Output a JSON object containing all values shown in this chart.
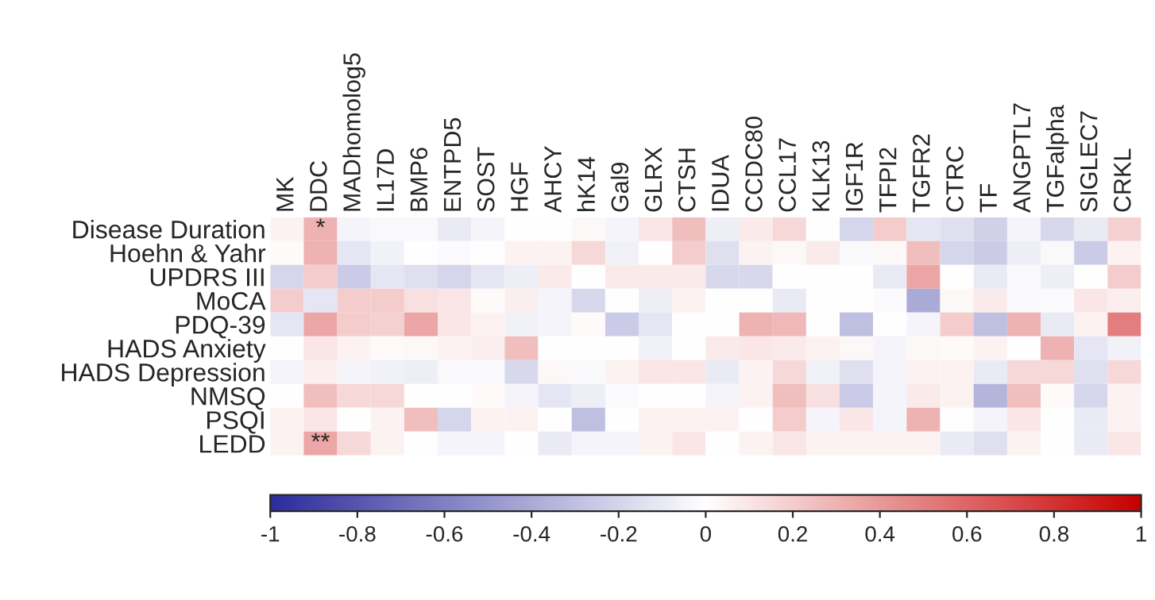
{
  "chart_data": {
    "type": "heatmap",
    "categories": [
      "MK",
      "DDC",
      "MADhomolog5",
      "IL17D",
      "BMP6",
      "ENTPD5",
      "SOST",
      "HGF",
      "AHCY",
      "hK14",
      "Gal9",
      "GLRX",
      "CTSH",
      "IDUA",
      "CCDC80",
      "CCL17",
      "KLK13",
      "IGF1R",
      "TFPI2",
      "TGFR2",
      "CTRC",
      "TF",
      "ANGPTL7",
      "TGFalpha",
      "SIGLEC7",
      "CRKL"
    ],
    "y_categories": [
      "Disease Duration",
      "Hoehn & Yahr",
      "UPDRS III",
      "MoCA",
      "PDQ-39",
      "HADS Anxiety",
      "HADS Depression",
      "NMSQ",
      "PSQI",
      "LEDD"
    ],
    "cells": [
      [
        0.05,
        0.3,
        -0.05,
        -0.03,
        -0.03,
        -0.1,
        -0.05,
        0,
        0,
        0.03,
        -0.05,
        0.1,
        0.25,
        -0.08,
        0.08,
        0.15,
        0,
        -0.2,
        0.2,
        -0.12,
        -0.15,
        -0.22,
        -0.05,
        -0.18,
        -0.1,
        0.18
      ],
      [
        0.02,
        0.3,
        -0.12,
        -0.07,
        0,
        -0.02,
        0,
        0.05,
        0.05,
        0.15,
        -0.07,
        0,
        0.2,
        -0.15,
        0.05,
        0.03,
        0.08,
        -0.03,
        0.03,
        0.25,
        -0.2,
        -0.25,
        -0.08,
        -0.03,
        -0.25,
        0.05
      ],
      [
        -0.2,
        0.2,
        -0.25,
        -0.12,
        -0.15,
        -0.2,
        -0.12,
        -0.08,
        0.08,
        0,
        0.08,
        0.08,
        0.08,
        -0.18,
        -0.18,
        0,
        0,
        0,
        -0.1,
        0.35,
        0,
        -0.1,
        -0.03,
        -0.08,
        0,
        0.2
      ],
      [
        0.2,
        -0.12,
        0.2,
        0.2,
        0.12,
        0.1,
        0.02,
        0.07,
        -0.05,
        -0.18,
        0,
        -0.08,
        0.05,
        0,
        0,
        -0.1,
        0,
        0,
        -0.02,
        -0.4,
        0.03,
        0.08,
        -0.03,
        -0.02,
        0.1,
        0.07
      ],
      [
        -0.12,
        0.35,
        0.2,
        0.18,
        0.35,
        0.1,
        0.05,
        -0.07,
        -0.05,
        0.02,
        -0.25,
        -0.12,
        0,
        0,
        0.3,
        0.28,
        0,
        -0.3,
        0,
        -0.05,
        0.2,
        -0.3,
        0.3,
        -0.1,
        0.05,
        0.5
      ],
      [
        0,
        0.1,
        0.05,
        0.02,
        0.03,
        0.05,
        0.07,
        0.25,
        0,
        0,
        0,
        -0.07,
        0,
        0.08,
        0.1,
        0.08,
        0.05,
        0.03,
        -0.05,
        0.03,
        0.02,
        0.05,
        0,
        0.3,
        -0.12,
        -0.07
      ],
      [
        -0.05,
        0.07,
        -0.05,
        -0.07,
        -0.08,
        -0.03,
        -0.03,
        -0.18,
        0.03,
        -0.03,
        0.05,
        0.1,
        0.1,
        -0.1,
        0.05,
        0.15,
        -0.07,
        -0.15,
        -0.05,
        0.05,
        0.05,
        -0.1,
        0.15,
        0.15,
        -0.15,
        0.15
      ],
      [
        0,
        0.25,
        0.15,
        0.15,
        0,
        0,
        0.02,
        -0.05,
        -0.12,
        -0.08,
        -0.02,
        0,
        0,
        -0.05,
        0.05,
        0.25,
        0.12,
        -0.25,
        -0.05,
        0.08,
        0.05,
        -0.35,
        0.25,
        0.02,
        -0.2,
        0.05
      ],
      [
        0.05,
        0.1,
        0,
        0.05,
        0.25,
        -0.2,
        0.05,
        0.05,
        0,
        -0.3,
        0,
        0.05,
        0.05,
        0.05,
        0,
        0.2,
        -0.05,
        0.1,
        -0.05,
        0.3,
        0,
        -0.05,
        0.1,
        0,
        -0.1,
        0.05
      ],
      [
        0.05,
        0.35,
        0.15,
        0.05,
        0,
        -0.05,
        -0.05,
        0,
        -0.1,
        -0.05,
        -0.05,
        0.05,
        0.1,
        0,
        0.05,
        0.1,
        0.05,
        0.05,
        0.05,
        0.05,
        -0.1,
        -0.15,
        0.05,
        0,
        -0.1,
        0.1
      ]
    ],
    "cell_labels": [
      [
        null,
        "*",
        null,
        null,
        null,
        null,
        null,
        null,
        null,
        null,
        null,
        null,
        null,
        null,
        null,
        null,
        null,
        null,
        null,
        null,
        null,
        null,
        null,
        null,
        null,
        null
      ],
      [
        null,
        null,
        null,
        null,
        null,
        null,
        null,
        null,
        null,
        null,
        null,
        null,
        null,
        null,
        null,
        null,
        null,
        null,
        null,
        null,
        null,
        null,
        null,
        null,
        null,
        null
      ],
      [
        null,
        null,
        null,
        null,
        null,
        null,
        null,
        null,
        null,
        null,
        null,
        null,
        null,
        null,
        null,
        null,
        null,
        null,
        null,
        null,
        null,
        null,
        null,
        null,
        null,
        null
      ],
      [
        null,
        null,
        null,
        null,
        null,
        null,
        null,
        null,
        null,
        null,
        null,
        null,
        null,
        null,
        null,
        null,
        null,
        null,
        null,
        null,
        null,
        null,
        null,
        null,
        null,
        null
      ],
      [
        null,
        null,
        null,
        null,
        null,
        null,
        null,
        null,
        null,
        null,
        null,
        null,
        null,
        null,
        null,
        null,
        null,
        null,
        null,
        null,
        null,
        null,
        null,
        null,
        null,
        null
      ],
      [
        null,
        null,
        null,
        null,
        null,
        null,
        null,
        null,
        null,
        null,
        null,
        null,
        null,
        null,
        null,
        null,
        null,
        null,
        null,
        null,
        null,
        null,
        null,
        null,
        null,
        null
      ],
      [
        null,
        null,
        null,
        null,
        null,
        null,
        null,
        null,
        null,
        null,
        null,
        null,
        null,
        null,
        null,
        null,
        null,
        null,
        null,
        null,
        null,
        null,
        null,
        null,
        null,
        null
      ],
      [
        null,
        null,
        null,
        null,
        null,
        null,
        null,
        null,
        null,
        null,
        null,
        null,
        null,
        null,
        null,
        null,
        null,
        null,
        null,
        null,
        null,
        null,
        null,
        null,
        null,
        null
      ],
      [
        null,
        null,
        null,
        null,
        null,
        null,
        null,
        null,
        null,
        null,
        null,
        null,
        null,
        null,
        null,
        null,
        null,
        null,
        null,
        null,
        null,
        null,
        null,
        null,
        null,
        null
      ],
      [
        null,
        "**",
        null,
        null,
        null,
        null,
        null,
        null,
        null,
        null,
        null,
        null,
        null,
        null,
        null,
        null,
        null,
        null,
        null,
        null,
        null,
        null,
        null,
        null,
        null,
        null
      ]
    ],
    "clim": [
      -1,
      1
    ],
    "cticks": [
      -1,
      -0.8,
      -0.6,
      -0.4,
      -0.2,
      0,
      0.2,
      0.4,
      0.6,
      0.8,
      1
    ]
  }
}
